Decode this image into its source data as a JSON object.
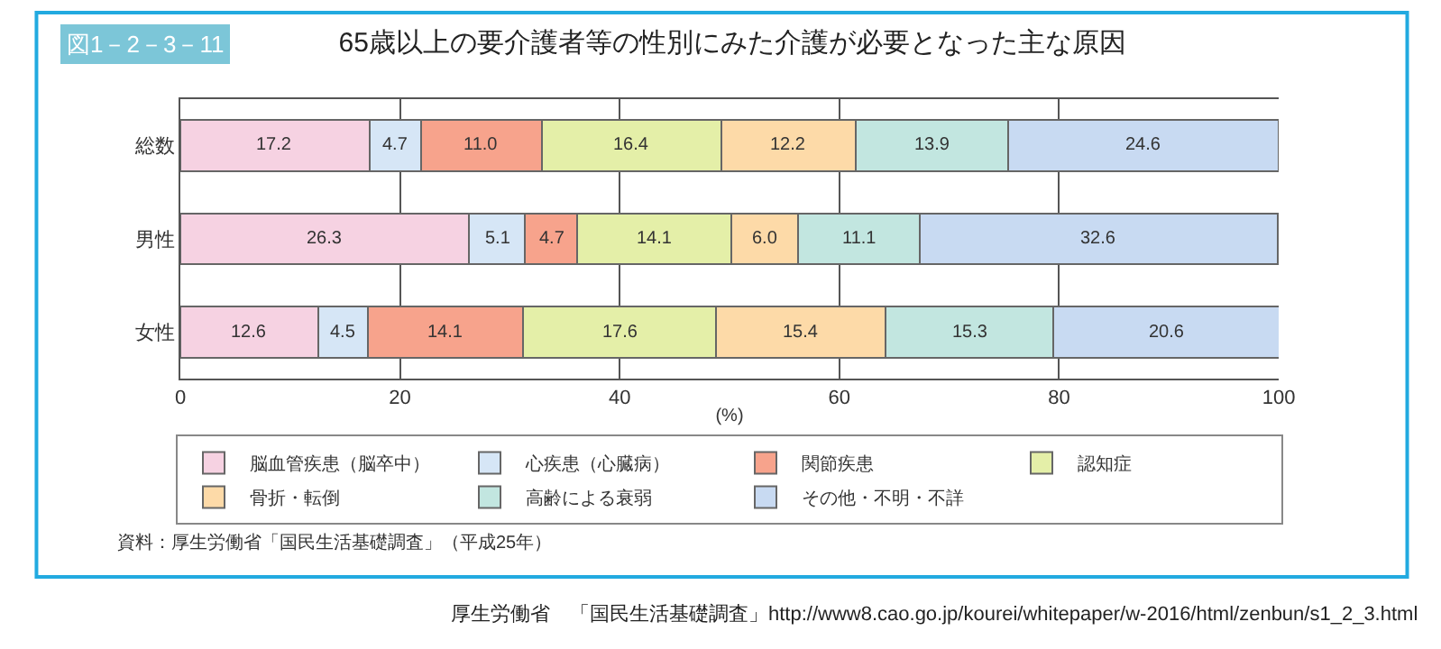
{
  "chart_data": {
    "type": "bar",
    "orientation": "horizontal",
    "stacked": true,
    "grid": "x",
    "legend": "bottom",
    "title": "65歳以上の要介護者等の性別にみた介護が必要となった主な原因",
    "xlabel": "(%)",
    "categories": [
      "総数",
      "男性",
      "女性"
    ],
    "xlim": [
      0,
      100
    ],
    "xticks": [
      0,
      20,
      40,
      60,
      80,
      100
    ],
    "series": [
      {
        "name": "脳血管疾患（脳卒中）",
        "color": "#f6d2e2",
        "values": [
          17.2,
          26.3,
          12.6
        ],
        "value_labels": [
          "17.2",
          "26.3",
          "12.6"
        ]
      },
      {
        "name": "心疾患（心臓病）",
        "color": "#d6e6f6",
        "values": [
          4.7,
          5.1,
          4.5
        ],
        "value_labels": [
          "4.7",
          "5.1",
          "4.5"
        ]
      },
      {
        "name": "関節疾患",
        "color": "#f7a38c",
        "values": [
          11.0,
          4.7,
          14.1
        ],
        "value_labels": [
          "11.0",
          "4.7",
          "14.1"
        ]
      },
      {
        "name": "認知症",
        "color": "#e4efa8",
        "values": [
          16.4,
          14.1,
          17.6
        ],
        "value_labels": [
          "16.4",
          "14.1",
          "17.6"
        ]
      },
      {
        "name": "骨折・転倒",
        "color": "#fddaa8",
        "values": [
          12.2,
          6.0,
          15.4
        ],
        "value_labels": [
          "12.2",
          "6.0",
          "15.4"
        ]
      },
      {
        "name": "高齢による衰弱",
        "color": "#c2e6e0",
        "values": [
          13.9,
          11.1,
          15.3
        ],
        "value_labels": [
          "13.9",
          "11.1",
          "15.3"
        ]
      },
      {
        "name": "その他・不明・不詳",
        "color": "#c8daf2",
        "values": [
          24.6,
          32.6,
          20.6
        ],
        "value_labels": [
          "24.6",
          "32.6",
          "20.6"
        ]
      }
    ],
    "annotations": [
      "図1－2－3－11",
      "資料：厚生労働省「国民生活基礎調査」（平成25年）",
      "厚生労働省　「国民生活基礎調査」http://www8.cao.go.jp/kourei/whitepaper/w-2016/html/zenbun/s1_2_3.html"
    ]
  }
}
